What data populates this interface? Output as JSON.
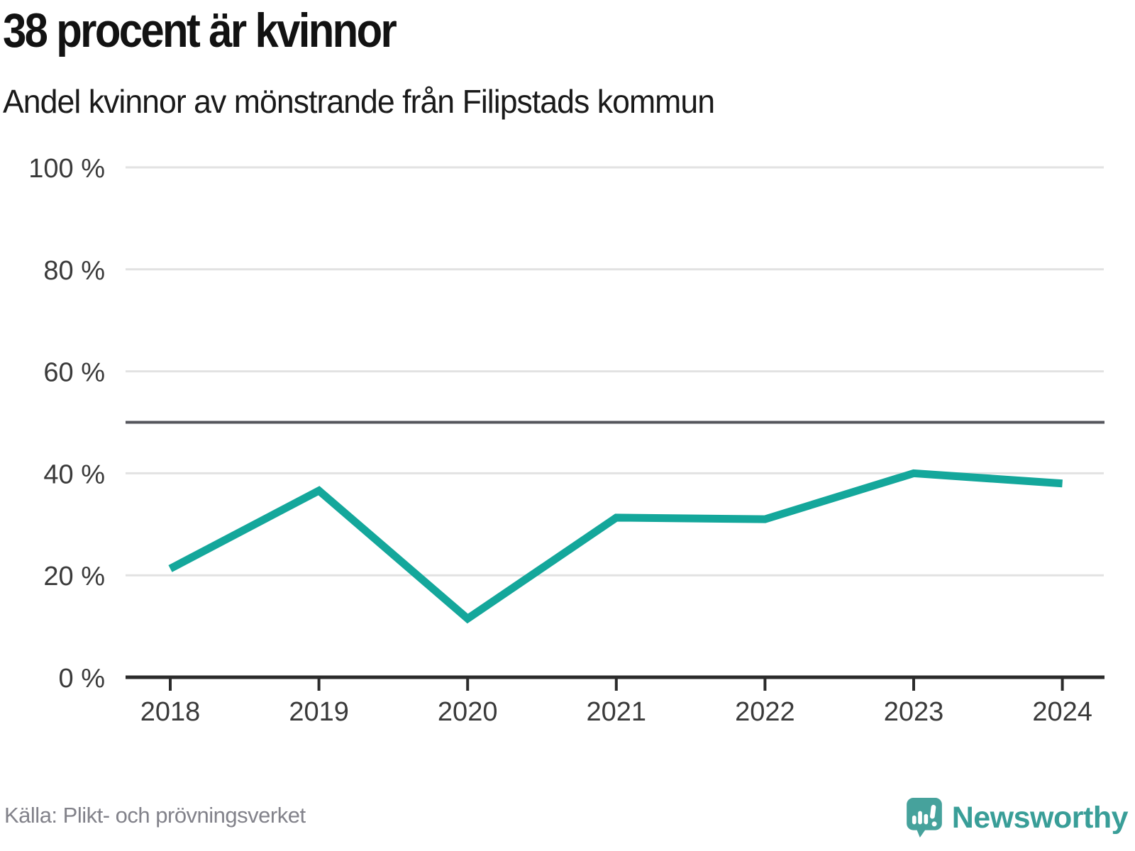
{
  "header": {
    "title": "38 procent är kvinnor",
    "subtitle": "Andel kvinnor av mönstrande från Filipstads kommun"
  },
  "footer": {
    "source": "Källa: Plikt- och prövningsverket",
    "brand": "Newsworthy"
  },
  "colors": {
    "line": "#14a79b",
    "grid": "#e2e2e2",
    "refline": "#55565c",
    "axis": "#2b2b2b",
    "tick_label": "#3a3a3a",
    "title_text": "#121212",
    "source_text": "#82828a",
    "brand_teal": "#399e98",
    "logo_bubble": "#46a29c"
  },
  "chart_data": {
    "type": "line",
    "x": [
      "2018",
      "2019",
      "2020",
      "2021",
      "2022",
      "2023",
      "2024"
    ],
    "series": [
      {
        "name": "Andel kvinnor av mönstrande, Filipstads kommun",
        "values": [
          21.3,
          36.6,
          11.5,
          31.3,
          31.0,
          40.0,
          38.0
        ]
      }
    ],
    "title": "38 procent är kvinnor",
    "subtitle": "Andel kvinnor av mönstrande från Filipstads kommun",
    "xlabel": "",
    "ylabel": "",
    "ylim": [
      0,
      100
    ],
    "yticks": [
      0,
      20,
      40,
      60,
      80,
      100
    ],
    "ytick_format": "{v} %",
    "reference_line": 50,
    "grid": "horizontal",
    "legend": "none"
  }
}
